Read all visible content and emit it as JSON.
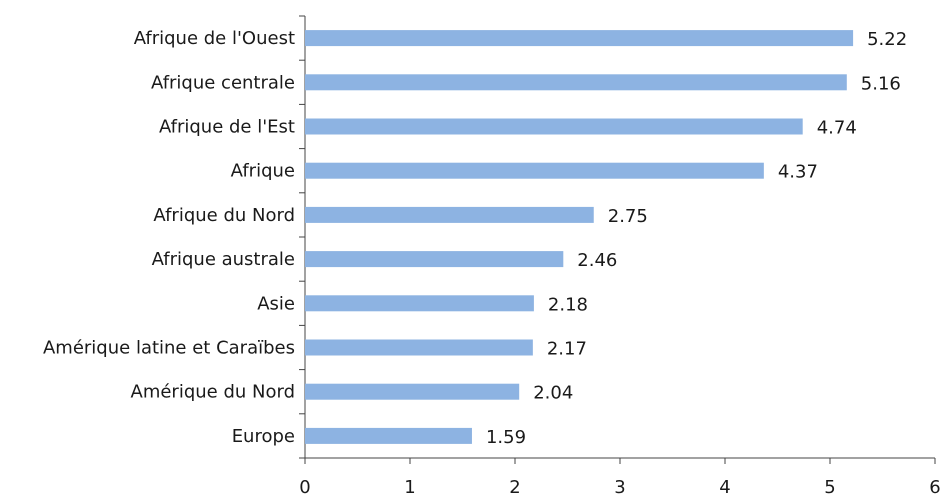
{
  "chart_data": {
    "type": "bar",
    "orientation": "horizontal",
    "categories": [
      "Afrique de l'Ouest",
      "Afrique centrale",
      "Afrique de l'Est",
      "Afrique",
      "Afrique du Nord",
      "Afrique australe",
      "Asie",
      "Amérique latine et Caraïbes",
      "Amérique du Nord",
      "Europe"
    ],
    "values": [
      5.22,
      5.16,
      4.74,
      4.37,
      2.75,
      2.46,
      2.18,
      2.17,
      2.04,
      1.59
    ],
    "color": "#8db3e2",
    "xlim": [
      0,
      6
    ],
    "xticks": [
      0,
      1,
      2,
      3,
      4,
      5,
      6
    ],
    "grid": false
  }
}
